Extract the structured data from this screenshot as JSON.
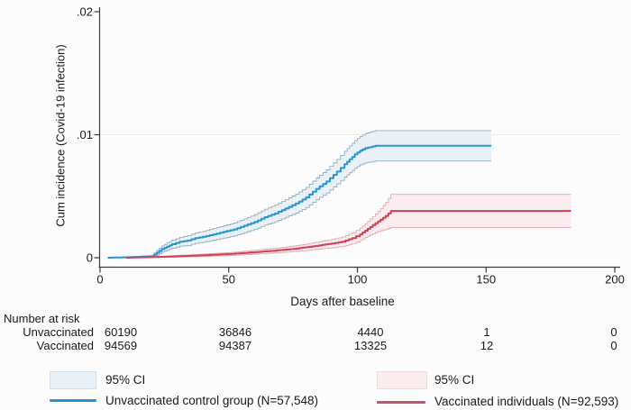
{
  "figure": {
    "background": "#fcfcfc",
    "axis_color": "#3c3c3c",
    "text_color": "#1a1a1a",
    "grid_color": "#eaeaea"
  },
  "chart_data": {
    "type": "line",
    "subtype": "cumulative-incidence-step-curves-with-ci-bands",
    "title": "",
    "xlabel": "Days after baseline",
    "ylabel": "Cum incidence (Covid-19 infection)",
    "xlim": [
      0,
      200
    ],
    "ylim": [
      0,
      0.02
    ],
    "xticks": [
      0,
      50,
      100,
      150,
      200
    ],
    "xtick_labels": [
      "0",
      "50",
      "100",
      "150",
      "200"
    ],
    "yticks": [
      0,
      0.01,
      0.02
    ],
    "ytick_labels": [
      "0",
      ".01",
      ".02"
    ],
    "gridlines_y": [
      0.01
    ],
    "legend_position": "below-plot-two-columns",
    "series": [
      {
        "name": "Unvaccinated control group (N=57,548)",
        "color": "#2596d1",
        "band_fill": "#e9f0f6",
        "band_edge": "#94aebf",
        "days": [
          3,
          20,
          22,
          24,
          26,
          28,
          31,
          34,
          37,
          40,
          44,
          48,
          52,
          56,
          60,
          64,
          68,
          72,
          76,
          80,
          84,
          88,
          92,
          95,
          97,
          99,
          101,
          103,
          105,
          107,
          152
        ],
        "values": [
          0,
          0.0001,
          0.0004,
          0.0007,
          0.0009,
          0.0011,
          0.0013,
          0.0014,
          0.0016,
          0.0017,
          0.0019,
          0.0021,
          0.0023,
          0.0026,
          0.0029,
          0.0033,
          0.0036,
          0.004,
          0.0044,
          0.0049,
          0.0056,
          0.0062,
          0.007,
          0.0076,
          0.008,
          0.0084,
          0.0087,
          0.0089,
          0.009,
          0.0091,
          0.0091
        ],
        "ci_halfwidth": [
          0,
          8e-05,
          0.0002,
          0.00025,
          0.0003,
          0.00033,
          0.00036,
          0.0004,
          0.00042,
          0.00044,
          0.00047,
          0.0005,
          0.00053,
          0.00056,
          0.0006,
          0.00064,
          0.00068,
          0.00072,
          0.00077,
          0.00082,
          0.00088,
          0.00094,
          0.001,
          0.00105,
          0.00109,
          0.00113,
          0.00116,
          0.00119,
          0.00121,
          0.00124,
          0.00124
        ]
      },
      {
        "name": "Vaccinated individuals (N=92,593)",
        "color": "#cf4255",
        "band_fill": "#fbedef",
        "band_edge": "#e3a8af",
        "days": [
          10,
          25,
          30,
          35,
          40,
          45,
          50,
          55,
          60,
          65,
          70,
          75,
          80,
          85,
          90,
          94,
          98,
          101,
          103,
          105,
          107,
          109,
          111,
          113,
          183
        ],
        "values": [
          0,
          8e-05,
          0.00012,
          0.00016,
          0.0002,
          0.00025,
          0.0003,
          0.00037,
          0.00045,
          0.00053,
          0.00062,
          0.00072,
          0.00085,
          0.001,
          0.00115,
          0.0013,
          0.0016,
          0.0019,
          0.0022,
          0.0025,
          0.0028,
          0.0031,
          0.0034,
          0.0038,
          0.0038
        ],
        "ci_halfwidth": [
          0,
          5e-05,
          7e-05,
          8e-05,
          0.0001,
          0.00011,
          0.00012,
          0.00014,
          0.00016,
          0.00018,
          0.0002,
          0.00023,
          0.00026,
          0.0003,
          0.00034,
          0.00038,
          0.00044,
          0.0005,
          0.00056,
          0.00065,
          0.00075,
          0.0009,
          0.0011,
          0.00135,
          0.00135
        ]
      }
    ]
  },
  "number_at_risk": {
    "title": "Number at risk",
    "column_days": [
      0,
      50,
      100,
      150,
      200
    ],
    "rows": [
      {
        "label": "Unvaccinated",
        "counts": [
          "60190",
          "36846",
          "4440",
          "1",
          "0"
        ]
      },
      {
        "label": "Vaccinated",
        "counts": [
          "94569",
          "94387",
          "13325",
          "12",
          "0"
        ]
      }
    ]
  },
  "legend": {
    "items": [
      {
        "kind": "band",
        "label": "95% CI",
        "fill": "#e9f0f6",
        "edge": "#d4dee7"
      },
      {
        "kind": "line",
        "label": "Unvaccinated control group (N=57,548)",
        "color": "#2596d1"
      },
      {
        "kind": "band",
        "label": "95% CI",
        "fill": "#fbeced",
        "edge": "#efdadc"
      },
      {
        "kind": "line",
        "label": "Vaccinated individuals (N=92,593)",
        "color": "#c4556a"
      }
    ]
  }
}
